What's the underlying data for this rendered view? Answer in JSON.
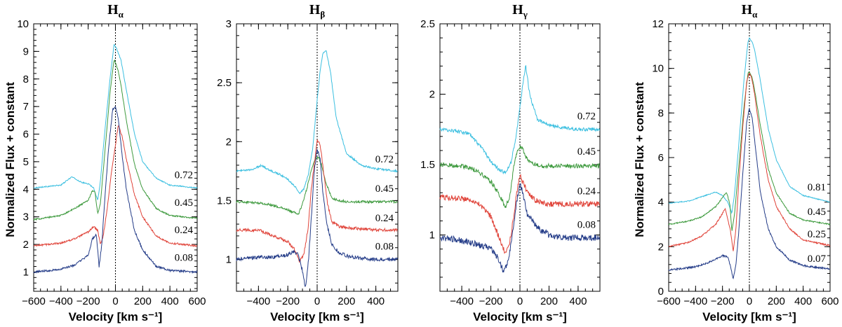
{
  "figure": {
    "xlabel": "Velocity [km s⁻¹]",
    "ylabel": "Normalized Flux + constant",
    "colors": {
      "c072": "#3bbfe0",
      "c045": "#3e9a3e",
      "c024": "#e0443a",
      "c008": "#243c88"
    }
  },
  "chart_data": [
    {
      "type": "line",
      "title_base": "H",
      "title_sub": "α",
      "xlim": [
        -600,
        600
      ],
      "ylim": [
        0.3,
        10
      ],
      "xticks": [
        -600,
        -400,
        -200,
        0,
        200,
        400,
        600
      ],
      "yticks": [
        1,
        2,
        3,
        4,
        5,
        6,
        7,
        8,
        9,
        10
      ],
      "noise": 0.02,
      "series": [
        {
          "name": "0.72",
          "color": "#3bbfe0",
          "base": 4.05,
          "label_y": 4.3,
          "x": [
            -600,
            -400,
            -320,
            -250,
            -200,
            -160,
            -130,
            -110,
            -80,
            -40,
            -10,
            0,
            20,
            40,
            80,
            140,
            200,
            300,
            400,
            600
          ],
          "y": [
            4.05,
            4.15,
            4.45,
            4.25,
            4.2,
            4.05,
            3.6,
            4.3,
            6,
            8,
            9.25,
            9.2,
            8.95,
            8.7,
            7.6,
            6,
            5,
            4.4,
            4.15,
            4.05
          ]
        },
        {
          "name": "0.45",
          "color": "#3e9a3e",
          "base": 2.9,
          "label_y": 3.3,
          "x": [
            -600,
            -400,
            -300,
            -200,
            -170,
            -150,
            -130,
            -110,
            -80,
            -40,
            -10,
            0,
            20,
            40,
            80,
            140,
            200,
            300,
            400,
            600
          ],
          "y": [
            2.9,
            3.05,
            3.3,
            3.6,
            3.95,
            3.9,
            3.1,
            3.5,
            5.2,
            7.5,
            8.7,
            8.6,
            8.3,
            7.8,
            6.5,
            4.9,
            4,
            3.3,
            3.05,
            2.95
          ]
        },
        {
          "name": "0.24",
          "color": "#e0443a",
          "base": 1.9,
          "label_y": 2.3,
          "x": [
            -600,
            -400,
            -300,
            -200,
            -160,
            -130,
            -110,
            -90,
            -60,
            -30,
            0,
            20,
            30,
            50,
            80,
            140,
            200,
            300,
            400,
            600
          ],
          "y": [
            1.95,
            2.05,
            2.2,
            2.45,
            2.65,
            2.5,
            2,
            2.3,
            3.3,
            4.6,
            5.6,
            6.3,
            6.2,
            5.9,
            5.1,
            3.8,
            3,
            2.3,
            2.05,
            1.95
          ]
        },
        {
          "name": "0.08",
          "color": "#243c88",
          "base": 1.0,
          "label_y": 1.3,
          "x": [
            -600,
            -400,
            -300,
            -200,
            -170,
            -140,
            -120,
            -100,
            -80,
            -50,
            -20,
            0,
            20,
            50,
            80,
            140,
            200,
            300,
            400,
            600
          ],
          "y": [
            1,
            1.1,
            1.25,
            1.6,
            2.2,
            2.35,
            1.2,
            2,
            3.5,
            5.5,
            6.9,
            7,
            6.6,
            5.2,
            4,
            2.5,
            1.8,
            1.2,
            1.05,
            1
          ]
        }
      ]
    },
    {
      "type": "line",
      "title_base": "H",
      "title_sub": "β",
      "xlim": [
        -550,
        550
      ],
      "ylim": [
        0.73,
        3
      ],
      "xticks": [
        -400,
        -200,
        0,
        200,
        400
      ],
      "yticks": [
        1,
        1.5,
        2,
        2.5,
        3
      ],
      "noise": 0.008,
      "series": [
        {
          "name": "0.72",
          "color": "#3bbfe0",
          "base": 1.75,
          "label_y": 1.8,
          "x": [
            -550,
            -450,
            -380,
            -330,
            -250,
            -200,
            -150,
            -120,
            -90,
            -60,
            -30,
            0,
            20,
            40,
            60,
            90,
            130,
            200,
            300,
            400,
            550
          ],
          "y": [
            1.75,
            1.76,
            1.8,
            1.76,
            1.72,
            1.68,
            1.62,
            1.56,
            1.6,
            1.72,
            1.95,
            2.35,
            2.6,
            2.75,
            2.78,
            2.6,
            2.2,
            1.9,
            1.8,
            1.77,
            1.75
          ]
        },
        {
          "name": "0.45",
          "color": "#3e9a3e",
          "base": 1.49,
          "label_y": 1.55,
          "x": [
            -550,
            -400,
            -300,
            -200,
            -160,
            -130,
            -100,
            -70,
            -40,
            -10,
            10,
            30,
            60,
            100,
            150,
            200,
            300,
            400,
            550
          ],
          "y": [
            1.49,
            1.48,
            1.46,
            1.42,
            1.4,
            1.38,
            1.47,
            1.6,
            1.76,
            1.86,
            1.87,
            1.8,
            1.65,
            1.52,
            1.5,
            1.49,
            1.49,
            1.49,
            1.49
          ]
        },
        {
          "name": "0.24",
          "color": "#e0443a",
          "base": 1.25,
          "label_y": 1.3,
          "x": [
            -550,
            -400,
            -300,
            -200,
            -150,
            -120,
            -90,
            -60,
            -40,
            -10,
            0,
            20,
            40,
            70,
            100,
            150,
            200,
            300,
            400,
            550
          ],
          "y": [
            1.25,
            1.25,
            1.2,
            1.15,
            1.08,
            0.98,
            1.05,
            1.28,
            1.6,
            1.9,
            2.02,
            1.98,
            1.78,
            1.48,
            1.32,
            1.28,
            1.27,
            1.26,
            1.25,
            1.25
          ]
        },
        {
          "name": "0.08",
          "color": "#243c88",
          "base": 1.0,
          "label_y": 1.06,
          "x": [
            -550,
            -400,
            -300,
            -200,
            -160,
            -130,
            -100,
            -80,
            -60,
            -40,
            -20,
            0,
            20,
            40,
            70,
            100,
            150,
            200,
            300,
            400,
            550
          ],
          "y": [
            1,
            1.02,
            1.02,
            1.04,
            1.07,
            1.04,
            0.9,
            0.76,
            0.98,
            1.35,
            1.75,
            1.94,
            1.85,
            1.55,
            1.28,
            1.13,
            1.06,
            1.03,
            1.01,
            1,
            1
          ]
        }
      ]
    },
    {
      "type": "line",
      "title_base": "H",
      "title_sub": "γ",
      "xlim": [
        -550,
        550
      ],
      "ylim": [
        0.6,
        2.5
      ],
      "xticks": [
        -400,
        -200,
        0,
        200,
        400
      ],
      "yticks": [
        1,
        1.5,
        2,
        2.5
      ],
      "noise": 0.012,
      "series": [
        {
          "name": "0.72",
          "color": "#3bbfe0",
          "base": 1.75,
          "label_y": 1.8,
          "x": [
            -550,
            -450,
            -350,
            -250,
            -200,
            -150,
            -100,
            -60,
            -30,
            0,
            20,
            40,
            60,
            80,
            120,
            200,
            300,
            400,
            550
          ],
          "y": [
            1.75,
            1.74,
            1.72,
            1.6,
            1.52,
            1.47,
            1.44,
            1.52,
            1.68,
            1.9,
            2.08,
            2.2,
            2.05,
            1.95,
            1.82,
            1.78,
            1.76,
            1.75,
            1.75
          ]
        },
        {
          "name": "0.45",
          "color": "#3e9a3e",
          "base": 1.49,
          "label_y": 1.55,
          "x": [
            -550,
            -400,
            -300,
            -200,
            -150,
            -100,
            -70,
            -40,
            -10,
            10,
            30,
            60,
            100,
            150,
            200,
            300,
            400,
            550
          ],
          "y": [
            1.5,
            1.49,
            1.46,
            1.38,
            1.3,
            1.2,
            1.27,
            1.5,
            1.62,
            1.63,
            1.58,
            1.52,
            1.5,
            1.49,
            1.49,
            1.49,
            1.49,
            1.49
          ]
        },
        {
          "name": "0.24",
          "color": "#e0443a",
          "base": 1.22,
          "label_y": 1.27,
          "x": [
            -550,
            -400,
            -300,
            -200,
            -150,
            -100,
            -70,
            -40,
            -20,
            0,
            20,
            50,
            100,
            150,
            200,
            300,
            400,
            550
          ],
          "y": [
            1.27,
            1.26,
            1.24,
            1.13,
            1.0,
            0.87,
            0.95,
            1.15,
            1.32,
            1.42,
            1.38,
            1.3,
            1.25,
            1.23,
            1.22,
            1.22,
            1.22,
            1.22
          ]
        },
        {
          "name": "0.08",
          "color": "#243c88",
          "base": 0.98,
          "label_y": 1.03,
          "x": [
            -550,
            -450,
            -350,
            -250,
            -200,
            -150,
            -110,
            -80,
            -50,
            -20,
            0,
            20,
            50,
            100,
            150,
            200,
            300,
            400,
            550
          ],
          "y": [
            0.98,
            0.97,
            0.95,
            0.92,
            0.9,
            0.84,
            0.73,
            0.82,
            1.02,
            1.25,
            1.36,
            1.3,
            1.15,
            1.08,
            1.03,
            1,
            0.98,
            0.98,
            0.98
          ]
        }
      ]
    },
    {
      "type": "line",
      "title_base": "H",
      "title_sub": "α",
      "xlim": [
        -600,
        600
      ],
      "ylim": [
        0,
        12
      ],
      "xticks": [
        -600,
        -400,
        -200,
        0,
        200,
        400,
        600
      ],
      "yticks": [
        0,
        2,
        4,
        6,
        8,
        10,
        12
      ],
      "noise": 0.02,
      "series": [
        {
          "name": "0.81",
          "color": "#3bbfe0",
          "base": 3.95,
          "label_y": 4.4,
          "x": [
            -600,
            -450,
            -350,
            -250,
            -200,
            -160,
            -130,
            -110,
            -80,
            -40,
            -10,
            0,
            20,
            40,
            80,
            140,
            200,
            300,
            400,
            600
          ],
          "y": [
            3.95,
            4.05,
            4.25,
            4.45,
            4.3,
            4.0,
            3.5,
            4.4,
            6.5,
            9.5,
            11.2,
            11.35,
            11.2,
            10.8,
            9.5,
            7.3,
            5.9,
            4.7,
            4.3,
            4.0
          ]
        },
        {
          "name": "0.45",
          "color": "#3e9a3e",
          "base": 2.95,
          "label_y": 3.3,
          "x": [
            -600,
            -450,
            -350,
            -250,
            -200,
            -170,
            -145,
            -130,
            -110,
            -80,
            -40,
            -10,
            0,
            20,
            40,
            80,
            140,
            200,
            300,
            400,
            600
          ],
          "y": [
            3.0,
            3.15,
            3.35,
            3.8,
            4.2,
            4.45,
            3.9,
            2.7,
            3.5,
            5.5,
            8.3,
            9.8,
            9.85,
            9.6,
            9.0,
            7.5,
            5.5,
            4.4,
            3.5,
            3.2,
            3.0
          ]
        },
        {
          "name": "0.25",
          "color": "#e0443a",
          "base": 2.0,
          "label_y": 2.3,
          "x": [
            -600,
            -450,
            -350,
            -250,
            -180,
            -140,
            -120,
            -100,
            -80,
            -50,
            -20,
            0,
            20,
            40,
            80,
            140,
            200,
            300,
            400,
            600
          ],
          "y": [
            2.0,
            2.2,
            2.5,
            3.0,
            3.7,
            2.7,
            1.8,
            2.8,
            4.8,
            7.3,
            9.4,
            9.8,
            9.5,
            8.8,
            7.0,
            5.0,
            3.8,
            2.8,
            2.3,
            2.05
          ]
        },
        {
          "name": "0.07",
          "color": "#243c88",
          "base": 0.95,
          "label_y": 1.2,
          "x": [
            -600,
            -400,
            -300,
            -200,
            -160,
            -140,
            -120,
            -100,
            -80,
            -50,
            -20,
            0,
            20,
            50,
            80,
            140,
            200,
            300,
            400,
            600
          ],
          "y": [
            0.95,
            1.1,
            1.3,
            1.6,
            1.55,
            1.1,
            0.55,
            1.2,
            2.6,
            5.2,
            7.6,
            8.2,
            7.8,
            6.2,
            4.5,
            2.8,
            2.0,
            1.4,
            1.15,
            1.0
          ]
        }
      ]
    }
  ]
}
